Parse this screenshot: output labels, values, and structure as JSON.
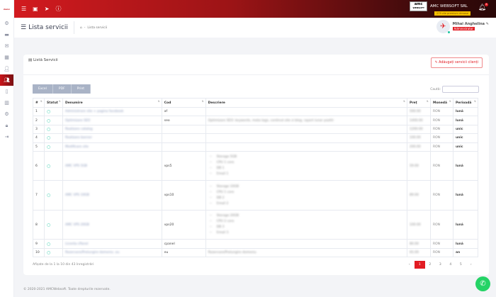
{
  "brand": {
    "logo_text": "amcwebsoft",
    "accent": "#e21c23"
  },
  "sidebar": {
    "items": [
      {
        "icon": "dashboard-icon"
      },
      {
        "icon": "briefcase-icon"
      },
      {
        "icon": "mail-icon"
      },
      {
        "icon": "calendar-icon"
      },
      {
        "icon": "user-plus-icon"
      },
      {
        "icon": "users-icon",
        "active": true
      },
      {
        "icon": "tablet-icon"
      },
      {
        "icon": "chart-icon"
      },
      {
        "icon": "cogs-icon"
      },
      {
        "icon": "lock-icon"
      },
      {
        "icon": "logout-icon"
      }
    ]
  },
  "topbar": {
    "company": "AMC WEBSOFT SRL",
    "company_logo": "amc WEBSOFT",
    "premium": "279 zile premium rămase",
    "notifications": "8"
  },
  "header": {
    "title": "Lista servicii",
    "breadcrumb": [
      "⌂",
      "-",
      "Lista servicii"
    ],
    "user_name": "Mihai Anghelina",
    "user_role": "Administrator"
  },
  "card": {
    "title": "Listă Servicii",
    "add_button": "Adăugați servicii clienți"
  },
  "toolbar": {
    "excel": "Excel",
    "pdf": "PDF",
    "print": "Print",
    "search_label": "Caută:",
    "search_value": ""
  },
  "table": {
    "columns": [
      "#",
      "Statut",
      "Denumire",
      "Cod",
      "Descriere",
      "Preț",
      "Monedă",
      "Perioadă"
    ],
    "rows": [
      {
        "n": "1",
        "name": "Administrare site + pagina facebook",
        "code": "af",
        "desc": "",
        "price": "500.00",
        "cur": "RON",
        "per": "lună"
      },
      {
        "n": "2",
        "name": "Optimizare SEO",
        "code": "seo",
        "desc": "Optimizare SEO: keywords, meta tags, continut site si blog, raport lunar pozitii",
        "price": "1400.00",
        "cur": "RON",
        "per": "lună"
      },
      {
        "n": "3",
        "name": "Realizare catalog",
        "code": "",
        "desc": "",
        "price": "1200.00",
        "cur": "RON",
        "per": "unic"
      },
      {
        "n": "4",
        "name": "Realizare banner",
        "code": "",
        "desc": "",
        "price": "100.00",
        "cur": "RON",
        "per": "unic"
      },
      {
        "n": "5",
        "name": "Modificare site",
        "code": "",
        "desc": "",
        "price": "200.00",
        "cur": "RON",
        "per": "unic"
      },
      {
        "n": "6",
        "name": "AMC VPS 5GB",
        "code": "vps5",
        "desc": [
          "Storage 5GB",
          "CPU 1 core",
          "DB 1",
          "Email 1"
        ],
        "price": "59.00",
        "cur": "RON",
        "per": "lună"
      },
      {
        "n": "7",
        "name": "AMC VPS 10GB",
        "code": "vps10",
        "desc": [
          "Storage 10GB",
          "CPU 1 core",
          "DB 2",
          "Email 2"
        ],
        "price": "89.00",
        "cur": "RON",
        "per": "lună"
      },
      {
        "n": "8",
        "name": "AMC VPS 20GB",
        "code": "vps20",
        "desc": [
          "Storage 20GB",
          "CPU 2 core",
          "DB 3",
          "Email 3"
        ],
        "price": "100.00",
        "cur": "RON",
        "per": "lună"
      },
      {
        "n": "9",
        "name": "Licenta cPanel",
        "code": "cpanel",
        "desc": "",
        "price": "80.00",
        "cur": "RON",
        "per": "lună"
      },
      {
        "n": "10",
        "name": "Rezervare/Prelungire domeniu .eu",
        "code": "eu",
        "desc": "Rezervare/Prelungire domeniu",
        "price": "65.00",
        "cur": "RON",
        "per": "an"
      }
    ]
  },
  "pagination": {
    "info": "Afișate de la 1 la 10 din 43 înregistrări",
    "prev": "‹",
    "pages": [
      "1",
      "2",
      "3",
      "4",
      "5"
    ],
    "current": "1",
    "next": "›"
  },
  "footer": {
    "text": "© 2020-2021 AMCWebsoft. Toate drepturile rezervate."
  }
}
